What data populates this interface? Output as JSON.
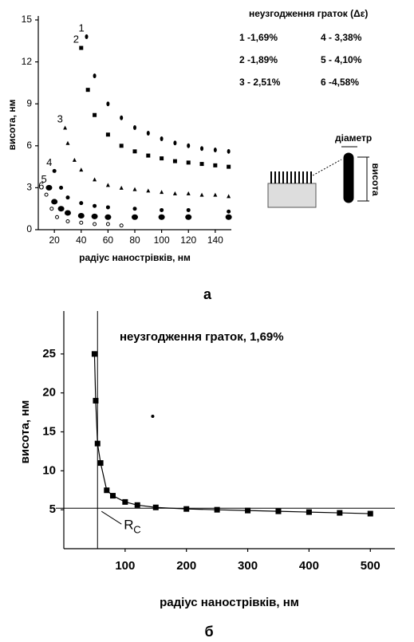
{
  "chart_data": [
    {
      "type": "scatter",
      "panel_label": "а",
      "xlabel": "радіус нанострівків, нм",
      "ylabel": "висота, нм",
      "xlim": [
        8,
        152
      ],
      "ylim": [
        0,
        15
      ],
      "xticks": [
        20,
        40,
        60,
        80,
        100,
        120,
        140
      ],
      "yticks": [
        0,
        3,
        6,
        9,
        12,
        15
      ],
      "legend_title": "неузгодження граток (Δε)",
      "annotations": [
        "діаметр",
        "висота"
      ],
      "series": [
        {
          "name": "1 -1,69%",
          "label": "1",
          "marker": "diamond",
          "color": "#000000",
          "x": [
            44,
            50,
            60,
            70,
            80,
            90,
            100,
            110,
            120,
            130,
            140,
            150
          ],
          "values": [
            13.8,
            11,
            9,
            8,
            7.3,
            6.9,
            6.5,
            6.2,
            6,
            5.8,
            5.7,
            5.6
          ]
        },
        {
          "name": "2 -1,89%",
          "label": "2",
          "marker": "square",
          "color": "#000000",
          "x": [
            40,
            45,
            50,
            60,
            70,
            80,
            90,
            100,
            110,
            120,
            130,
            140,
            150
          ],
          "values": [
            13,
            10,
            8.2,
            6.8,
            6,
            5.6,
            5.3,
            5.1,
            4.9,
            4.8,
            4.7,
            4.6,
            4.5
          ]
        },
        {
          "name": "3 - 2,51%",
          "label": "3",
          "marker": "triangle",
          "color": "#000000",
          "x": [
            28,
            30,
            35,
            40,
            50,
            60,
            70,
            80,
            90,
            100,
            110,
            120,
            130,
            140,
            150
          ],
          "values": [
            7.3,
            6.2,
            5,
            4.3,
            3.6,
            3.2,
            3,
            2.9,
            2.8,
            2.7,
            2.6,
            2.6,
            2.5,
            2.5,
            2.4
          ]
        },
        {
          "name": "4 - 3,38%",
          "label": "4",
          "marker": "circle",
          "color": "#000000",
          "x": [
            20,
            25,
            30,
            40,
            50,
            60,
            80,
            100,
            120,
            150
          ],
          "values": [
            4.2,
            3,
            2.3,
            1.9,
            1.7,
            1.6,
            1.5,
            1.4,
            1.4,
            1.3
          ]
        },
        {
          "name": "5 - 4,10%",
          "label": "5",
          "marker": "bigcircle",
          "color": "#000000",
          "x": [
            16,
            20,
            25,
            30,
            40,
            50,
            60,
            80,
            100,
            120,
            150
          ],
          "values": [
            3,
            2,
            1.5,
            1.2,
            1,
            0.95,
            0.9,
            0.9,
            0.9,
            0.9,
            0.9
          ]
        },
        {
          "name": "6 -4,58%",
          "label": "6",
          "marker": "open",
          "color": "#000000",
          "x": [
            14,
            18,
            22,
            30,
            40,
            50,
            60,
            70
          ],
          "values": [
            2.5,
            1.5,
            0.9,
            0.6,
            0.5,
            0.4,
            0.4,
            0.3
          ]
        }
      ]
    },
    {
      "type": "scatter",
      "panel_label": "б",
      "xlabel": "радіус нанострівків, нм",
      "ylabel": "висота, нм",
      "xlim": [
        0,
        540
      ],
      "ylim": [
        0,
        30
      ],
      "xticks": [
        100,
        200,
        300,
        400,
        500
      ],
      "yticks": [
        5,
        10,
        15,
        20,
        25
      ],
      "annotation": "неузгодження граток, 1,69%",
      "rc_label": "R",
      "rc_subscript": "C",
      "hline": 5.2,
      "vline": 55,
      "series": [
        {
          "marker": "square",
          "color": "#000000",
          "fit_line": true,
          "x": [
            50,
            52,
            55,
            60,
            70,
            80,
            100,
            120,
            150,
            200,
            250,
            300,
            350,
            400,
            450,
            500
          ],
          "values": [
            25,
            19,
            13.5,
            11,
            7.5,
            6.8,
            6,
            5.6,
            5.3,
            5.1,
            5,
            4.9,
            4.8,
            4.7,
            4.6,
            4.5
          ]
        }
      ],
      "outliers": {
        "x": [
          145
        ],
        "values": [
          17
        ]
      }
    }
  ]
}
